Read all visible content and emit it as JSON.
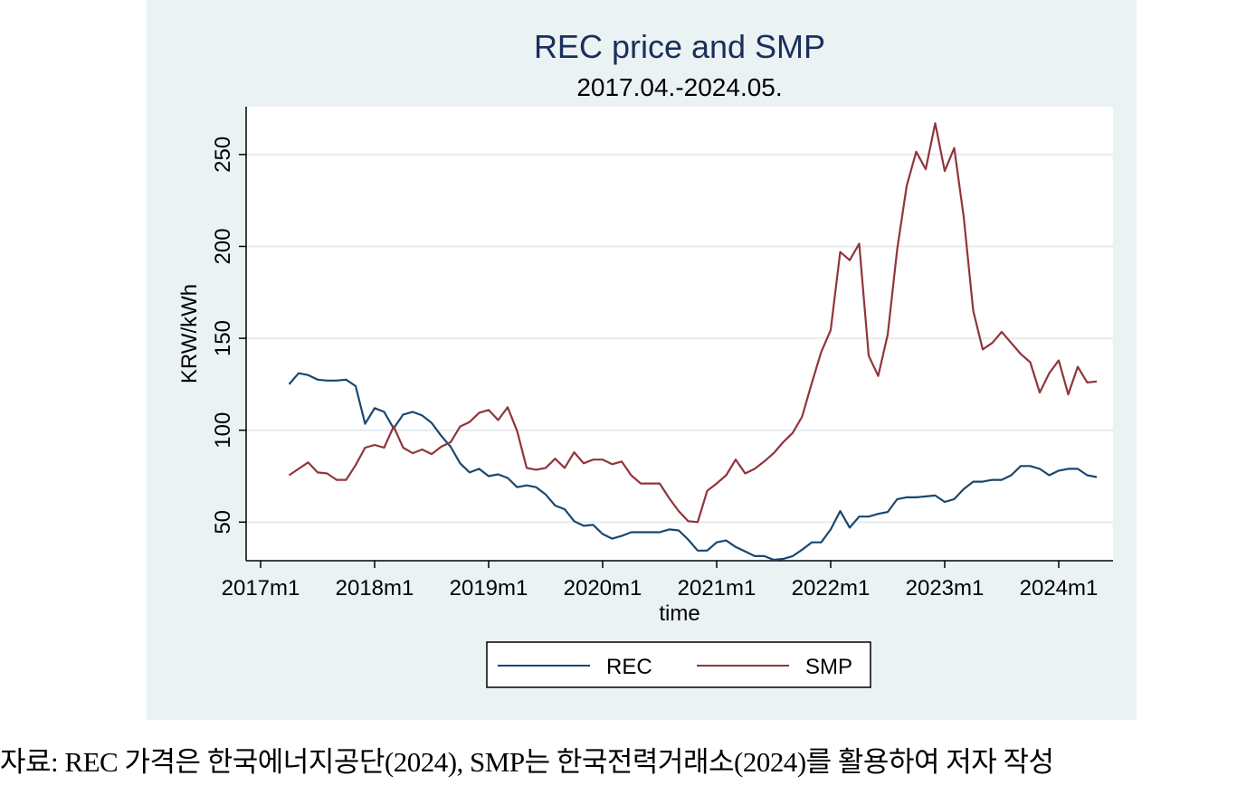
{
  "chart_data": {
    "type": "line",
    "title": "REC price and SMP",
    "subtitle": "2017.04.-2024.05.",
    "xlabel": "time",
    "ylabel": "KRW/kWh",
    "x_ticks": [
      "2017m1",
      "2018m1",
      "2019m1",
      "2020m1",
      "2021m1",
      "2022m1",
      "2023m1",
      "2024m1"
    ],
    "y_ticks": [
      50,
      100,
      150,
      200,
      250
    ],
    "ylim": [
      29,
      276
    ],
    "x_start": "2017m4",
    "x_end": "2024m5",
    "grid": true,
    "legend_position": "bottom",
    "series": [
      {
        "name": "REC",
        "color": "#1a476f",
        "values": [
          125,
          131,
          130,
          127.5,
          127,
          127,
          127.5,
          124,
          103.5,
          112,
          110,
          101,
          108.5,
          110,
          108,
          104,
          97,
          91,
          82,
          77,
          79,
          75,
          76,
          74,
          69,
          70,
          69,
          65,
          59,
          57,
          50.5,
          48,
          48.5,
          43.5,
          41,
          42.5,
          44.5,
          44.5,
          44.5,
          44.5,
          46,
          45.5,
          40.5,
          34.5,
          34.5,
          39,
          40,
          36.5,
          34,
          31.5,
          31.5,
          29.5,
          30,
          31.5,
          35,
          39,
          39,
          46,
          56,
          47,
          53,
          53,
          54.5,
          55.5,
          62.5,
          63.5,
          63.5,
          64,
          64.5,
          61,
          62.5,
          68,
          72,
          72,
          73,
          73,
          75.5,
          80.5,
          80.5,
          79,
          75.5,
          78,
          79,
          79,
          75.5,
          74.5
        ]
      },
      {
        "name": "SMP",
        "color": "#90353b",
        "values": [
          75.5,
          79,
          82.5,
          77,
          76.5,
          73,
          73,
          81,
          90.5,
          92,
          90.5,
          102,
          90.5,
          87.5,
          89.5,
          87,
          91,
          93.5,
          102,
          104.5,
          109.5,
          111,
          105.5,
          112.5,
          99.5,
          79.5,
          78.5,
          79.5,
          84.5,
          79.5,
          88,
          82,
          84,
          84,
          81.5,
          83,
          75.5,
          71,
          71,
          71,
          63,
          56,
          50.5,
          50,
          67,
          71,
          75.5,
          84,
          76.5,
          79,
          83,
          87.5,
          93.5,
          98.5,
          107.5,
          125.5,
          142.5,
          154.5,
          197,
          192.5,
          201.5,
          140.5,
          129.5,
          152,
          198.5,
          233,
          251.5,
          242,
          267,
          241,
          253.5,
          216,
          165,
          144,
          147.5,
          153.5,
          147.5,
          141.5,
          137,
          120.5,
          131,
          138,
          119.5,
          134.5,
          126,
          126.5
        ]
      }
    ]
  },
  "source_note": "자료: REC 가격은 한국에너지공단(2024), SMP는 한국전력거래소(2024)를 활용하여 저자 작성"
}
